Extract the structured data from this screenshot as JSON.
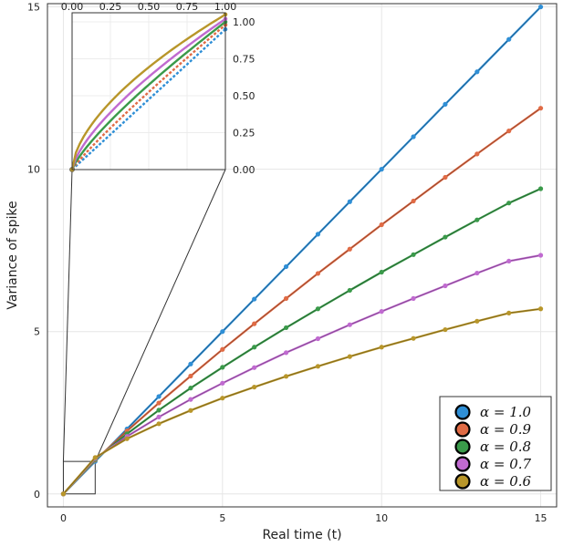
{
  "chart_data": {
    "type": "line",
    "title": "",
    "xlabel": "Real time (t)",
    "ylabel": "Variance of spike",
    "xlim": [
      -0.5,
      15.5
    ],
    "ylim": [
      -0.4,
      15.1
    ],
    "xticks": [
      "0",
      "5",
      "10",
      "15"
    ],
    "yticks": [
      "0",
      "5",
      "10",
      "15"
    ],
    "grid": true,
    "legend_position": "bottom-right",
    "legend_prefix": "α = ",
    "x": [
      0,
      1,
      2,
      3,
      4,
      5,
      6,
      7,
      8,
      9,
      10,
      11,
      12,
      13,
      14,
      15
    ],
    "series": [
      {
        "name": "1.0",
        "color": "#2f8fd6",
        "values": [
          0,
          1.0,
          2.0,
          3.0,
          4.0,
          5.0,
          6.0,
          7.0,
          8.0,
          9.0,
          10.0,
          11.0,
          12.0,
          13.0,
          14.0,
          15.0
        ]
      },
      {
        "name": "0.9",
        "color": "#e06b45",
        "values": [
          0,
          1.04,
          1.94,
          2.8,
          3.63,
          4.45,
          5.24,
          6.02,
          6.79,
          7.54,
          8.29,
          9.02,
          9.75,
          10.47,
          11.18,
          11.88
        ]
      },
      {
        "name": "0.8",
        "color": "#3a9a4a",
        "values": [
          0,
          1.06,
          1.85,
          2.58,
          3.26,
          3.9,
          4.52,
          5.12,
          5.7,
          6.27,
          6.83,
          7.37,
          7.91,
          8.44,
          8.96,
          9.4
        ]
      },
      {
        "name": "0.7",
        "color": "#c06ad0",
        "values": [
          0,
          1.09,
          1.77,
          2.37,
          2.91,
          3.41,
          3.89,
          4.35,
          4.78,
          5.21,
          5.62,
          6.02,
          6.41,
          6.8,
          7.17,
          7.35
        ]
      },
      {
        "name": "0.6",
        "color": "#b8962a",
        "values": [
          0,
          1.12,
          1.7,
          2.16,
          2.57,
          2.95,
          3.29,
          3.62,
          3.93,
          4.23,
          4.52,
          4.79,
          5.06,
          5.32,
          5.57,
          5.7
        ]
      }
    ],
    "inset": {
      "xlim": [
        0,
        1
      ],
      "ylim": [
        0,
        1.0
      ],
      "xticks": [
        "0.00",
        "0.25",
        "0.50",
        "0.75",
        "1.00"
      ],
      "yticks": [
        "0.00",
        "0.25",
        "0.50",
        "0.75",
        "1.00"
      ],
      "zoom_region": {
        "x": [
          0,
          1
        ],
        "y": [
          0,
          1
        ]
      }
    }
  }
}
